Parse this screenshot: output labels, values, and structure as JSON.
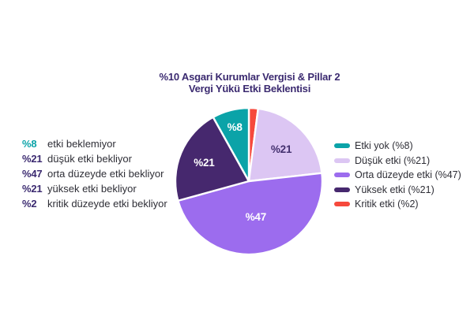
{
  "title": {
    "line1": "%10 Asgari Kurumlar Vergisi & Pillar 2",
    "line2": "Vergi Yükü Etki Beklentisi"
  },
  "left_list": {
    "items": [
      {
        "pct": "%8",
        "label": "etki beklemiyor",
        "pct_color": "#0BA3A8"
      },
      {
        "pct": "%21",
        "label": "düşük etki bekliyor",
        "pct_color": "#3B2A70"
      },
      {
        "pct": "%47",
        "label": "orta düzeyde etki bekliyor",
        "pct_color": "#3B2A70"
      },
      {
        "pct": "%21",
        "label": "yüksek etki bekliyor",
        "pct_color": "#3B2A70"
      },
      {
        "pct": "%2",
        "label": "kritik düzeyde etki bekliyor",
        "pct_color": "#3B2A70"
      }
    ]
  },
  "legend": {
    "items": [
      {
        "label": "Etki yok (%8)",
        "color": "#0BA3A8"
      },
      {
        "label": "Düşük etki (%21)",
        "color": "#DCC6F3"
      },
      {
        "label": "Orta düzeyde etki (%47)",
        "color": "#9C6CEE"
      },
      {
        "label": "Yüksek etki (%21)",
        "color": "#46286E"
      },
      {
        "label": "Kritik etki (%2)",
        "color": "#F6493C"
      }
    ]
  },
  "chart_data": {
    "type": "pie",
    "title": "%10 Asgari Kurumlar Vergisi & Pillar 2 Vergi Yükü Etki Beklentisi",
    "unit": "percent",
    "legend_position": "right",
    "slices": [
      {
        "label": "Etki yok",
        "value": 8,
        "color": "#0BA3A8",
        "pie_label": "%8",
        "pie_label_color": "#ffffff"
      },
      {
        "label": "Düşük etki",
        "value": 21,
        "color": "#DCC6F3",
        "pie_label": "%21",
        "pie_label_color": "#43306E"
      },
      {
        "label": "Orta düzeyde etki",
        "value": 47,
        "color": "#9C6CEE",
        "pie_label": "%47",
        "pie_label_color": "#ffffff"
      },
      {
        "label": "Yüksek etki",
        "value": 21,
        "color": "#46286E",
        "pie_label": "%21",
        "pie_label_color": "#ffffff"
      },
      {
        "label": "Kritik etki",
        "value": 2,
        "color": "#F6493C",
        "pie_label": "",
        "pie_label_color": "#ffffff"
      }
    ],
    "draw_order_clockwise_from_top": [
      4,
      1,
      2,
      3,
      0
    ]
  }
}
